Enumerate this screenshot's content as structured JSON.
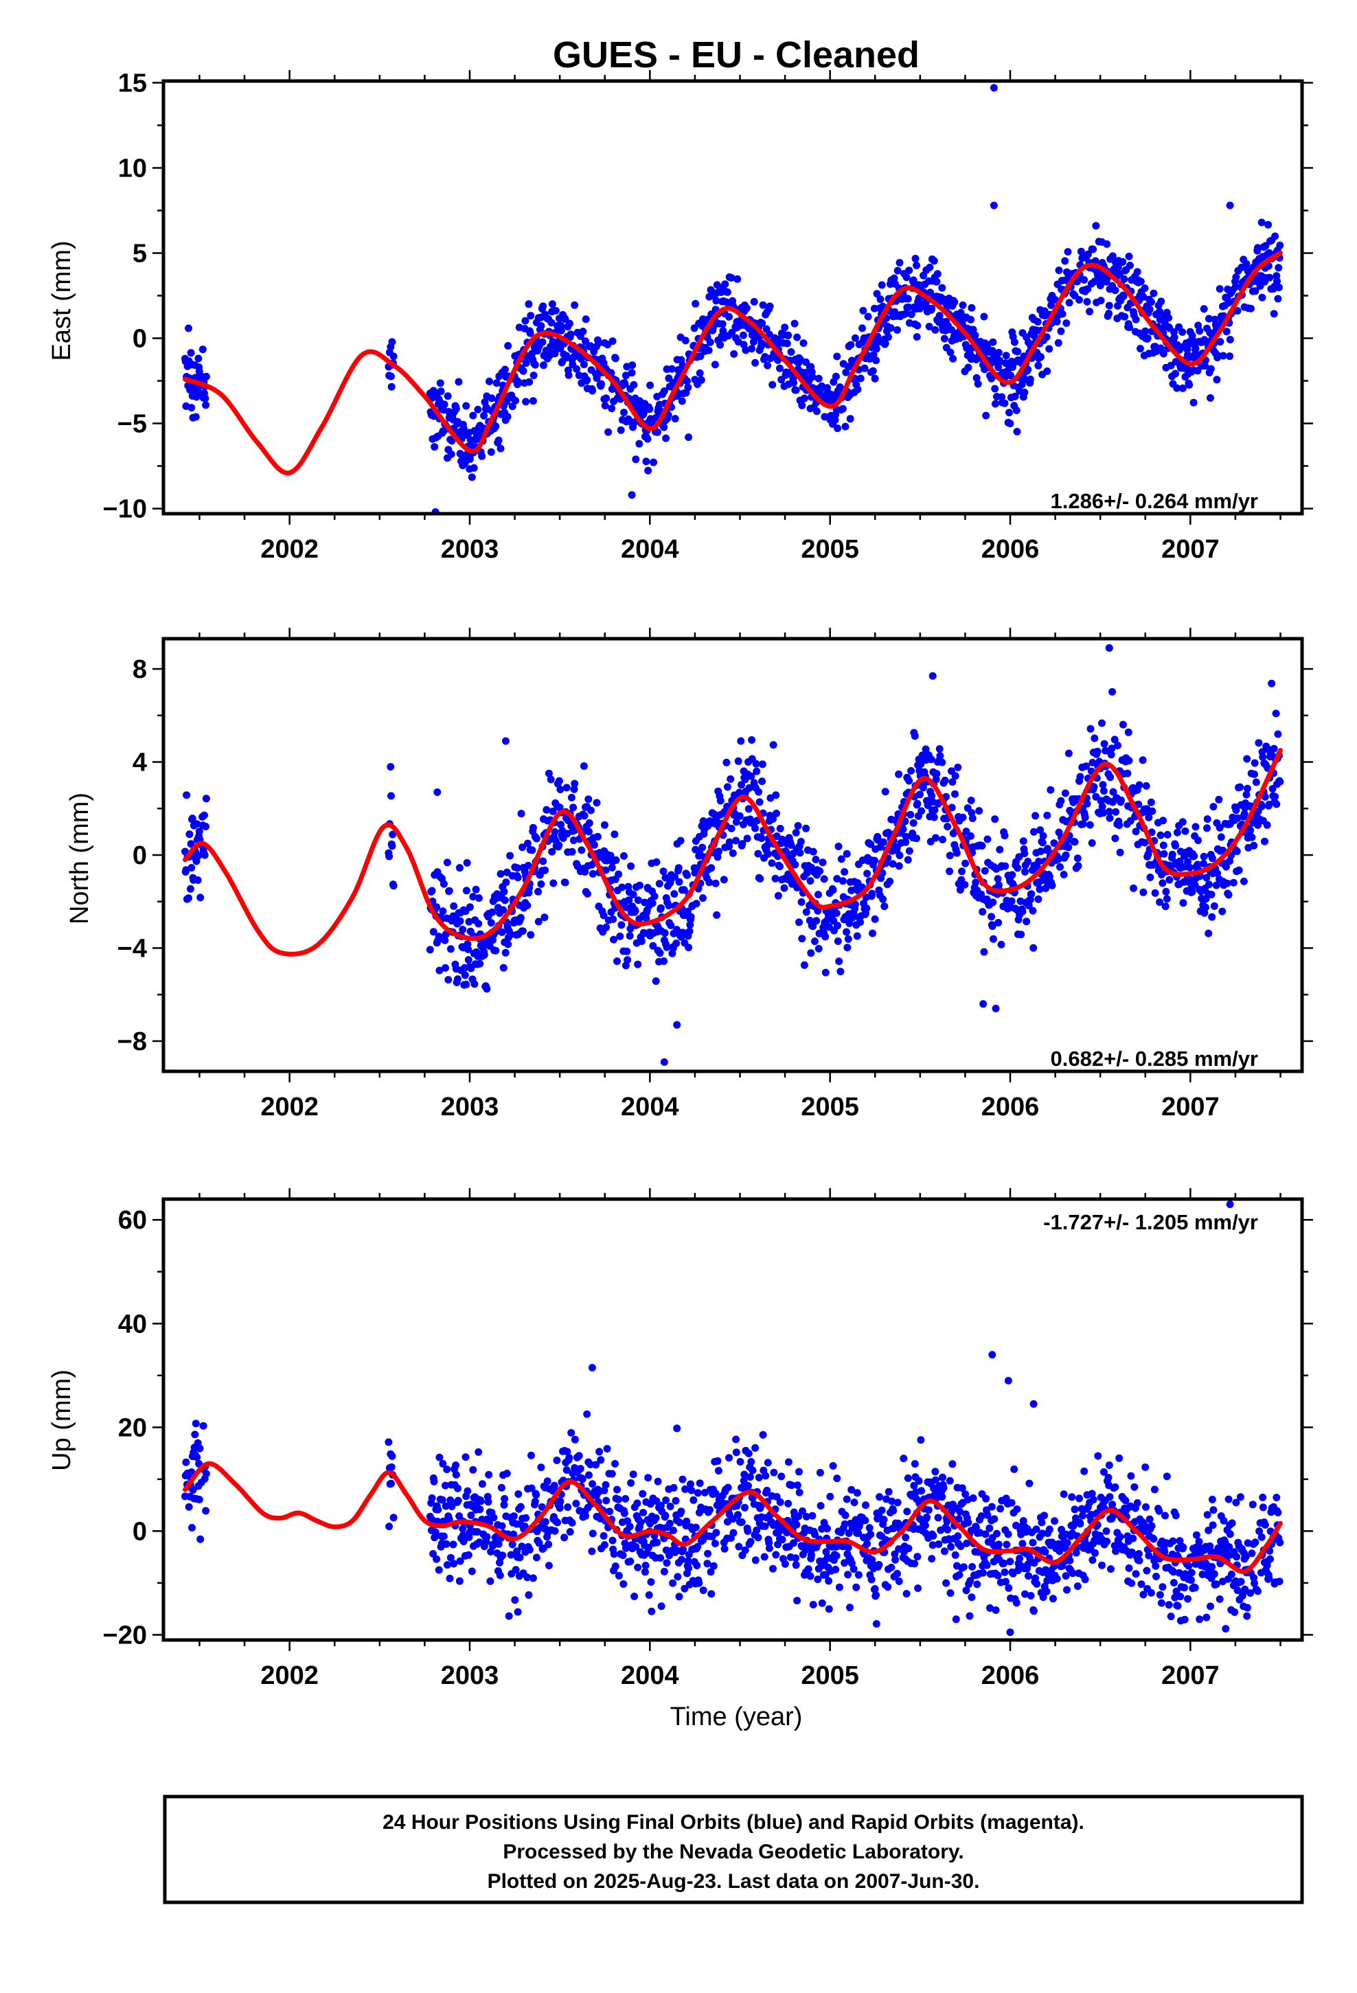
{
  "chart_data": [
    {
      "type": "scatter",
      "title": "GUES  - EU - Cleaned",
      "ylabel": "East (mm)",
      "xlabel": "",
      "xlim": [
        2001.3,
        2007.62
      ],
      "ylim": [
        -10.3,
        15.1
      ],
      "x_ticks": [
        2002,
        2003,
        2004,
        2005,
        2006,
        2007
      ],
      "y_ticks": [
        -10,
        -5,
        0,
        5,
        10,
        15
      ],
      "y_tick_labels": [
        "−10",
        "−5",
        "0",
        "5",
        "10",
        "15"
      ],
      "rate_label": "1.286+/- 0.264 mm/yr",
      "grid": false,
      "series": [
        {
          "color": "#0000ff",
          "style": "points",
          "segments": [
            [
              2001.42,
              2001.54
            ],
            [
              2002.55,
              2002.58
            ],
            [
              2002.78,
              2007.5
            ]
          ],
          "trend_mm_per_yr": 1.286,
          "offset_mm_at_2004": -2.7,
          "annual_amp_mm": 3.0,
          "annual_phase_yr": 0.12,
          "semiannual_amp_mm": 1.0,
          "semiannual_phase_yr": 0.3,
          "scatter_mm": 1.1,
          "outliers": [
            [
              2005.91,
              14.7
            ],
            [
              2005.91,
              7.8
            ],
            [
              2007.22,
              7.8
            ],
            [
              2002.81,
              -10.2
            ],
            [
              2003.9,
              -9.2
            ]
          ]
        },
        {
          "color": "#ff0000",
          "style": "line",
          "x_range": [
            2001.42,
            2007.5
          ],
          "points": [
            [
              2001.42,
              -2.4
            ],
            [
              2001.62,
              -3.3
            ],
            [
              2001.82,
              -6.1
            ],
            [
              2002.0,
              -7.9
            ],
            [
              2002.18,
              -5.2
            ],
            [
              2002.4,
              -1.0
            ],
            [
              2002.58,
              -1.6
            ],
            [
              2002.75,
              -3.4
            ],
            [
              2003.0,
              -6.6
            ],
            [
              2003.12,
              -4.8
            ],
            [
              2003.3,
              -0.8
            ],
            [
              2003.42,
              0.3
            ],
            [
              2003.6,
              -0.6
            ],
            [
              2003.8,
              -2.6
            ],
            [
              2004.0,
              -5.3
            ],
            [
              2004.15,
              -2.8
            ],
            [
              2004.38,
              1.5
            ],
            [
              2004.55,
              1.0
            ],
            [
              2004.75,
              -1.3
            ],
            [
              2005.0,
              -4.0
            ],
            [
              2005.15,
              -1.5
            ],
            [
              2005.38,
              2.7
            ],
            [
              2005.55,
              2.3
            ],
            [
              2005.75,
              0.3
            ],
            [
              2005.98,
              -2.6
            ],
            [
              2006.15,
              -0.2
            ],
            [
              2006.4,
              4.1
            ],
            [
              2006.6,
              3.3
            ],
            [
              2006.8,
              0.6
            ],
            [
              2007.0,
              -1.5
            ],
            [
              2007.15,
              0.2
            ],
            [
              2007.35,
              3.8
            ],
            [
              2007.5,
              5.0
            ]
          ]
        }
      ]
    },
    {
      "type": "scatter",
      "title": "",
      "ylabel": "North (mm)",
      "xlabel": "",
      "xlim": [
        2001.3,
        2007.62
      ],
      "ylim": [
        -9.3,
        9.3
      ],
      "x_ticks": [
        2002,
        2003,
        2004,
        2005,
        2006,
        2007
      ],
      "y_ticks": [
        -8,
        -4,
        0,
        4,
        8
      ],
      "y_tick_labels": [
        "−8",
        "−4",
        "0",
        "4",
        "8"
      ],
      "rate_label": "0.682+/- 0.285 mm/yr",
      "grid": false,
      "series": [
        {
          "color": "#0000ff",
          "style": "points",
          "segments": [
            [
              2001.42,
              2001.54
            ],
            [
              2002.55,
              2002.58
            ],
            [
              2002.78,
              2007.5
            ]
          ],
          "trend_mm_per_yr": 0.682,
          "offset_mm_at_2004": -0.8,
          "annual_amp_mm": 2.6,
          "annual_phase_yr": 0.52,
          "semiannual_amp_mm": 0.5,
          "semiannual_phase_yr": 0.1,
          "scatter_mm": 1.2,
          "outliers": [
            [
              2004.08,
              -8.9
            ],
            [
              2004.15,
              -7.3
            ],
            [
              2005.85,
              -6.4
            ],
            [
              2005.92,
              -6.6
            ],
            [
              2006.55,
              8.9
            ],
            [
              2002.82,
              2.7
            ],
            [
              2003.2,
              4.9
            ],
            [
              2005.57,
              7.7
            ]
          ]
        },
        {
          "color": "#ff0000",
          "style": "line",
          "x_range": [
            2001.42,
            2007.5
          ],
          "points": [
            [
              2001.42,
              -0.2
            ],
            [
              2001.52,
              0.5
            ],
            [
              2001.65,
              -0.8
            ],
            [
              2001.82,
              -3.2
            ],
            [
              2001.95,
              -4.2
            ],
            [
              2002.15,
              -3.9
            ],
            [
              2002.35,
              -1.8
            ],
            [
              2002.52,
              1.2
            ],
            [
              2002.65,
              0.3
            ],
            [
              2002.8,
              -2.5
            ],
            [
              2002.95,
              -3.5
            ],
            [
              2003.12,
              -3.3
            ],
            [
              2003.3,
              -1.4
            ],
            [
              2003.5,
              1.8
            ],
            [
              2003.65,
              0.5
            ],
            [
              2003.85,
              -2.5
            ],
            [
              2004.0,
              -2.9
            ],
            [
              2004.2,
              -1.9
            ],
            [
              2004.35,
              0.4
            ],
            [
              2004.52,
              2.5
            ],
            [
              2004.7,
              0.4
            ],
            [
              2004.9,
              -1.9
            ],
            [
              2005.0,
              -2.2
            ],
            [
              2005.2,
              -1.5
            ],
            [
              2005.35,
              0.8
            ],
            [
              2005.52,
              3.3
            ],
            [
              2005.7,
              1.2
            ],
            [
              2005.85,
              -1.2
            ],
            [
              2006.0,
              -1.5
            ],
            [
              2006.15,
              -0.8
            ],
            [
              2006.3,
              0.8
            ],
            [
              2006.52,
              3.9
            ],
            [
              2006.7,
              1.9
            ],
            [
              2006.85,
              -0.5
            ],
            [
              2007.0,
              -0.8
            ],
            [
              2007.15,
              -0.3
            ],
            [
              2007.3,
              1.2
            ],
            [
              2007.5,
              4.5
            ]
          ]
        }
      ]
    },
    {
      "type": "scatter",
      "title": "",
      "ylabel": "Up (mm)",
      "xlabel": "Time (year)",
      "xlim": [
        2001.3,
        2007.62
      ],
      "ylim": [
        -21,
        64
      ],
      "x_ticks": [
        2002,
        2003,
        2004,
        2005,
        2006,
        2007
      ],
      "y_ticks": [
        -20,
        0,
        20,
        40,
        60
      ],
      "y_tick_labels": [
        "−20",
        "0",
        "20",
        "40",
        "60"
      ],
      "rate_label": "-1.727+/- 1.205 mm/yr",
      "grid": false,
      "series": [
        {
          "color": "#0000ff",
          "style": "points",
          "segments": [
            [
              2001.42,
              2001.54
            ],
            [
              2002.55,
              2002.58
            ],
            [
              2002.78,
              2007.5
            ]
          ],
          "trend_mm_per_yr": -1.727,
          "offset_mm_at_2004": 2.5,
          "annual_amp_mm": 5.0,
          "annual_phase_yr": 0.55,
          "semiannual_amp_mm": 1.5,
          "semiannual_phase_yr": 0.1,
          "scatter_mm": 5.5,
          "outliers": [
            [
              2007.22,
              63.0
            ],
            [
              2005.9,
              34.0
            ],
            [
              2005.99,
              29.0
            ],
            [
              2006.13,
              24.5
            ],
            [
              2003.68,
              31.5
            ],
            [
              2004.15,
              19.8
            ],
            [
              2006.0,
              -19.5
            ],
            [
              2005.7,
              -17.0
            ]
          ]
        },
        {
          "color": "#ff0000",
          "style": "line",
          "x_range": [
            2001.42,
            2007.5
          ],
          "points": [
            [
              2001.42,
              8.0
            ],
            [
              2001.55,
              13.0
            ],
            [
              2001.7,
              9.0
            ],
            [
              2001.85,
              3.5
            ],
            [
              2001.95,
              2.5
            ],
            [
              2002.05,
              3.5
            ],
            [
              2002.15,
              2.0
            ],
            [
              2002.25,
              0.8
            ],
            [
              2002.35,
              2.0
            ],
            [
              2002.45,
              7.0
            ],
            [
              2002.55,
              11.3
            ],
            [
              2002.65,
              7.0
            ],
            [
              2002.75,
              2.0
            ],
            [
              2002.85,
              1.0
            ],
            [
              2002.95,
              1.8
            ],
            [
              2003.1,
              1.0
            ],
            [
              2003.25,
              -1.5
            ],
            [
              2003.4,
              3.0
            ],
            [
              2003.55,
              9.5
            ],
            [
              2003.7,
              5.0
            ],
            [
              2003.85,
              -0.8
            ],
            [
              2004.0,
              0.0
            ],
            [
              2004.1,
              -0.8
            ],
            [
              2004.2,
              -2.5
            ],
            [
              2004.35,
              2.0
            ],
            [
              2004.55,
              7.5
            ],
            [
              2004.7,
              3.0
            ],
            [
              2004.85,
              -1.5
            ],
            [
              2005.0,
              -2.0
            ],
            [
              2005.1,
              -2.0
            ],
            [
              2005.25,
              -4.0
            ],
            [
              2005.4,
              0.0
            ],
            [
              2005.55,
              5.8
            ],
            [
              2005.7,
              1.5
            ],
            [
              2005.85,
              -3.5
            ],
            [
              2006.0,
              -3.8
            ],
            [
              2006.1,
              -3.5
            ],
            [
              2006.25,
              -6.0
            ],
            [
              2006.4,
              -1.0
            ],
            [
              2006.55,
              4.0
            ],
            [
              2006.7,
              0.0
            ],
            [
              2006.85,
              -5.0
            ],
            [
              2007.0,
              -5.5
            ],
            [
              2007.15,
              -5.0
            ],
            [
              2007.3,
              -7.8
            ],
            [
              2007.42,
              -3.0
            ],
            [
              2007.5,
              1.5
            ]
          ]
        }
      ]
    }
  ],
  "caption": {
    "line1": "24 Hour Positions Using Final Orbits (blue) and Rapid Orbits (magenta).",
    "line2": "Processed by the Nevada Geodetic Laboratory.",
    "line3": "Plotted on 2025-Aug-23. Last data on 2007-Jun-30."
  }
}
